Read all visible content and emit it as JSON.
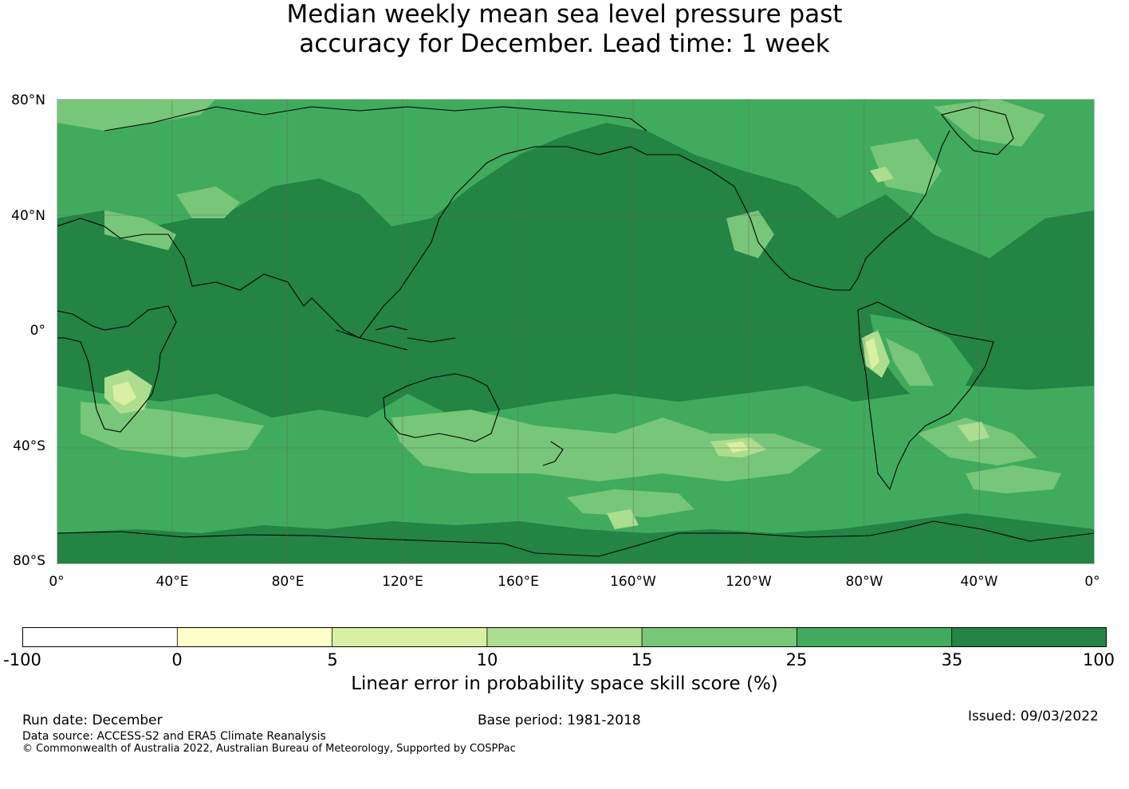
{
  "title": {
    "line1": "Median weekly mean sea level pressure past",
    "line2": "accuracy for December. Lead time: 1 week"
  },
  "map": {
    "lat_labels": [
      "80°N",
      "40°N",
      "0°",
      "40°S",
      "80°S"
    ],
    "lon_labels": [
      "0°",
      "40°E",
      "80°E",
      "120°E",
      "160°E",
      "160°W",
      "120°W",
      "80°W",
      "40°W",
      "0°"
    ],
    "colors": {
      "ocean_base": "#238443",
      "band_25_35": "#41ab5d",
      "band_15_25": "#78c679",
      "band_10_15": "#addd8e",
      "band_5_10": "#d9f0a3",
      "band_0_5": "#ffffcc",
      "coastline": "#000000"
    }
  },
  "colorbar": {
    "bins": [
      {
        "from": "-100",
        "to": "0",
        "color": "#ffffff"
      },
      {
        "from": "0",
        "to": "5",
        "color": "#ffffcc"
      },
      {
        "from": "5",
        "to": "10",
        "color": "#d9f0a3"
      },
      {
        "from": "10",
        "to": "15",
        "color": "#addd8e"
      },
      {
        "from": "15",
        "to": "25",
        "color": "#78c679"
      },
      {
        "from": "25",
        "to": "35",
        "color": "#41ab5d"
      },
      {
        "from": "35",
        "to": "100",
        "color": "#238443"
      }
    ],
    "tick_labels": [
      "-100",
      "0",
      "5",
      "10",
      "15",
      "25",
      "35",
      "100"
    ],
    "label": "Linear error in probability space skill score (%)"
  },
  "footer": {
    "run_date": "Run date: December",
    "base_period": "Base period: 1981-2018",
    "issued": "Issued: 09/03/2022",
    "data_source": "Data source: ACCESS-S2 and ERA5 Climate Reanalysis",
    "copyright": "© Commonwealth of Australia 2022, Australian Bureau of Meteorology, Supported by COSPPac"
  }
}
